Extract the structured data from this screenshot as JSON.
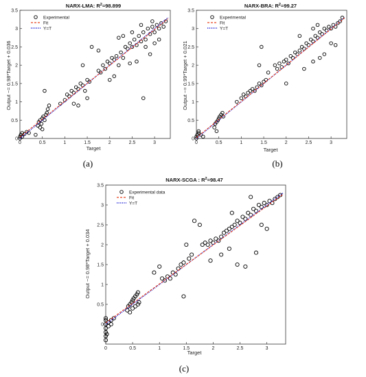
{
  "chart_data": [
    {
      "type": "scatter",
      "panel_label": "(a)",
      "title": "NARX-LMA: R",
      "title_sup": "2",
      "title_rest": "=98.899",
      "xlabel": "Target",
      "ylabel": "Output ~= 0.98*Target + 0.036",
      "xlim": [
        0,
        3.35
      ],
      "ylim": [
        0,
        3.5
      ],
      "xticks": [
        "0",
        "0.5",
        "1",
        "1.5",
        "2",
        "2.5",
        "3"
      ],
      "xtick_values": [
        0,
        0.5,
        1,
        1.5,
        2,
        2.5,
        3
      ],
      "yticks": [
        "0",
        "0.5",
        "1",
        "1.5",
        "2",
        "2.5",
        "3",
        "3.5"
      ],
      "ytick_values": [
        0,
        0.5,
        1,
        1.5,
        2,
        2.5,
        3,
        3.5
      ],
      "legend_position": "top-left",
      "series": [
        {
          "name": "Experimental",
          "style": "black circles"
        },
        {
          "name": "Fit",
          "style": "red dashed",
          "slope": 0.98,
          "intercept": 0.036,
          "color": "#e8401c"
        },
        {
          "name": "Y=T",
          "style": "blue dotted",
          "slope": 1,
          "intercept": 0,
          "color": "#1f1fd6"
        }
      ],
      "points": [
        [
          0,
          0
        ],
        [
          0,
          0.05
        ],
        [
          0.02,
          0.1
        ],
        [
          0.05,
          0.15
        ],
        [
          0.1,
          0.12
        ],
        [
          0.15,
          0.18
        ],
        [
          0.2,
          0.15
        ],
        [
          0.05,
          0.05
        ],
        [
          0.4,
          0.35
        ],
        [
          0.42,
          0.45
        ],
        [
          0.45,
          0.5
        ],
        [
          0.48,
          0.4
        ],
        [
          0.5,
          0.55
        ],
        [
          0.52,
          0.6
        ],
        [
          0.55,
          0.5
        ],
        [
          0.58,
          0.65
        ],
        [
          0.6,
          0.7
        ],
        [
          0.62,
          0.8
        ],
        [
          0.65,
          0.9
        ],
        [
          0.55,
          1.3
        ],
        [
          0.45,
          0.3
        ],
        [
          0.5,
          0.25
        ],
        [
          0.35,
          0.1
        ],
        [
          0.9,
          0.95
        ],
        [
          1.0,
          1.05
        ],
        [
          1.05,
          1.2
        ],
        [
          1.1,
          1.15
        ],
        [
          1.15,
          1.3
        ],
        [
          1.2,
          1.25
        ],
        [
          1.25,
          1.4
        ],
        [
          1.3,
          1.35
        ],
        [
          1.35,
          1.5
        ],
        [
          1.4,
          1.45
        ],
        [
          1.45,
          1.3
        ],
        [
          1.5,
          1.1
        ],
        [
          1.5,
          1.6
        ],
        [
          1.55,
          1.55
        ],
        [
          1.2,
          0.95
        ],
        [
          1.3,
          0.9
        ],
        [
          1.4,
          2.0
        ],
        [
          1.6,
          2.5
        ],
        [
          1.75,
          2.4
        ],
        [
          1.75,
          1.85
        ],
        [
          1.8,
          1.8
        ],
        [
          1.85,
          2.0
        ],
        [
          1.9,
          1.9
        ],
        [
          1.95,
          2.1
        ],
        [
          2.0,
          2.05
        ],
        [
          2.05,
          2.2
        ],
        [
          2.1,
          2.15
        ],
        [
          2.15,
          2.25
        ],
        [
          2.2,
          2.0
        ],
        [
          2.25,
          2.35
        ],
        [
          2.3,
          2.2
        ],
        [
          2.35,
          2.5
        ],
        [
          2.4,
          2.45
        ],
        [
          2.45,
          2.6
        ],
        [
          2.5,
          2.5
        ],
        [
          2.55,
          2.7
        ],
        [
          2.6,
          2.55
        ],
        [
          2.65,
          2.8
        ],
        [
          2.7,
          2.65
        ],
        [
          2.75,
          2.9
        ],
        [
          2.8,
          2.7
        ],
        [
          2.85,
          3.0
        ],
        [
          2.9,
          2.85
        ],
        [
          2.95,
          3.05
        ],
        [
          3.0,
          2.9
        ],
        [
          3.05,
          3.1
        ],
        [
          3.1,
          3.0
        ],
        [
          3.15,
          3.15
        ],
        [
          3.2,
          3.05
        ],
        [
          3.25,
          3.2
        ],
        [
          2.0,
          1.6
        ],
        [
          2.1,
          1.7
        ],
        [
          2.45,
          2.05
        ],
        [
          2.6,
          2.1
        ],
        [
          2.75,
          1.1
        ],
        [
          2.9,
          2.3
        ],
        [
          3.0,
          2.6
        ],
        [
          2.8,
          2.5
        ],
        [
          2.5,
          2.9
        ],
        [
          2.3,
          2.8
        ],
        [
          2.2,
          2.75
        ],
        [
          2.7,
          3.1
        ],
        [
          2.95,
          3.2
        ],
        [
          3.1,
          2.7
        ]
      ]
    },
    {
      "type": "scatter",
      "panel_label": "(b)",
      "title": "NARX-BRA: R",
      "title_sup": "2",
      "title_rest": "=99.27",
      "xlabel": "Target",
      "ylabel": "Output ~= 0.99*Target + 0.021",
      "xlim": [
        0,
        3.35
      ],
      "ylim": [
        0,
        3.5
      ],
      "xticks": [
        "0",
        "0.5",
        "1",
        "1.5",
        "2",
        "2.5",
        "3"
      ],
      "xtick_values": [
        0,
        0.5,
        1,
        1.5,
        2,
        2.5,
        3
      ],
      "yticks": [
        "0",
        "0.5",
        "1",
        "1.5",
        "2",
        "2.5",
        "3",
        "3.5"
      ],
      "ytick_values": [
        0,
        0.5,
        1,
        1.5,
        2,
        2.5,
        3,
        3.5
      ],
      "legend_position": "top-left",
      "series": [
        {
          "name": "Experimental",
          "style": "black circles"
        },
        {
          "name": "Fit",
          "style": "red dashed",
          "slope": 0.99,
          "intercept": 0.021,
          "color": "#e8401c"
        },
        {
          "name": "Y=T",
          "style": "blue dotted",
          "slope": 1,
          "intercept": 0,
          "color": "#1f1fd6"
        }
      ],
      "points": [
        [
          0,
          0
        ],
        [
          0,
          0.05
        ],
        [
          0.02,
          0.1
        ],
        [
          0.05,
          0.15
        ],
        [
          0.1,
          0.1
        ],
        [
          0.15,
          0.05
        ],
        [
          0.05,
          0.2
        ],
        [
          0.4,
          0.3
        ],
        [
          0.42,
          0.4
        ],
        [
          0.45,
          0.45
        ],
        [
          0.48,
          0.5
        ],
        [
          0.5,
          0.55
        ],
        [
          0.52,
          0.6
        ],
        [
          0.55,
          0.65
        ],
        [
          0.58,
          0.7
        ],
        [
          0.6,
          0.6
        ],
        [
          0.45,
          0.2
        ],
        [
          0.9,
          1.0
        ],
        [
          1.0,
          1.1
        ],
        [
          1.05,
          1.2
        ],
        [
          1.1,
          1.15
        ],
        [
          1.15,
          1.25
        ],
        [
          1.2,
          1.3
        ],
        [
          1.25,
          1.35
        ],
        [
          1.3,
          1.3
        ],
        [
          1.35,
          1.4
        ],
        [
          1.4,
          1.5
        ],
        [
          1.45,
          1.45
        ],
        [
          1.5,
          1.55
        ],
        [
          1.55,
          1.6
        ],
        [
          1.4,
          2.0
        ],
        [
          1.45,
          2.5
        ],
        [
          1.6,
          1.8
        ],
        [
          1.75,
          2.0
        ],
        [
          1.8,
          1.9
        ],
        [
          1.85,
          2.05
        ],
        [
          1.9,
          1.95
        ],
        [
          1.95,
          2.1
        ],
        [
          2.0,
          2.15
        ],
        [
          2.05,
          2.05
        ],
        [
          2.1,
          2.25
        ],
        [
          2.15,
          2.2
        ],
        [
          2.2,
          2.35
        ],
        [
          2.25,
          2.3
        ],
        [
          2.3,
          2.4
        ],
        [
          2.35,
          2.5
        ],
        [
          2.4,
          2.45
        ],
        [
          2.45,
          2.6
        ],
        [
          2.5,
          2.55
        ],
        [
          2.55,
          2.7
        ],
        [
          2.6,
          2.65
        ],
        [
          2.65,
          2.8
        ],
        [
          2.7,
          2.75
        ],
        [
          2.75,
          2.9
        ],
        [
          2.8,
          2.85
        ],
        [
          2.85,
          3.0
        ],
        [
          2.9,
          2.95
        ],
        [
          2.95,
          3.05
        ],
        [
          3.0,
          3.0
        ],
        [
          3.05,
          3.1
        ],
        [
          3.1,
          3.05
        ],
        [
          3.15,
          3.15
        ],
        [
          3.2,
          3.2
        ],
        [
          3.25,
          3.3
        ],
        [
          2.0,
          1.5
        ],
        [
          2.6,
          2.1
        ],
        [
          2.75,
          2.2
        ],
        [
          2.85,
          2.3
        ],
        [
          3.0,
          2.6
        ],
        [
          2.7,
          3.1
        ],
        [
          2.6,
          3.0
        ],
        [
          2.3,
          2.8
        ],
        [
          2.4,
          1.9
        ],
        [
          3.1,
          2.55
        ]
      ]
    },
    {
      "type": "scatter",
      "panel_label": "(c)",
      "title": "NARX-SCGA : R",
      "title_sup": "2",
      "title_rest": "=98.47",
      "xlabel": "Target",
      "ylabel": "Output ~= 0.98*Target + 0.034",
      "xlim": [
        0,
        3.35
      ],
      "ylim": [
        -0.5,
        3.5
      ],
      "xticks": [
        "0",
        "0.5",
        "1",
        "1.5",
        "2",
        "2.5",
        "3"
      ],
      "xtick_values": [
        0,
        0.5,
        1,
        1.5,
        2,
        2.5,
        3
      ],
      "yticks": [
        "0",
        "0.5",
        "1",
        "1.5",
        "2",
        "2.5",
        "3",
        "3.5"
      ],
      "ytick_values": [
        0,
        0.5,
        1,
        1.5,
        2,
        2.5,
        3,
        3.5
      ],
      "legend_position": "top-left",
      "series": [
        {
          "name": "Experimental data",
          "style": "black circles"
        },
        {
          "name": "Fit",
          "style": "red dashed",
          "slope": 0.98,
          "intercept": 0.034,
          "color": "#e8401c"
        },
        {
          "name": "Y=T",
          "style": "blue dotted",
          "slope": 1,
          "intercept": 0,
          "color": "#1f1fd6"
        }
      ],
      "points": [
        [
          0,
          0
        ],
        [
          0,
          -0.1
        ],
        [
          0,
          -0.2
        ],
        [
          0,
          -0.3
        ],
        [
          0,
          -0.4
        ],
        [
          0,
          0.1
        ],
        [
          0,
          0.15
        ],
        [
          0.05,
          0.05
        ],
        [
          0.05,
          -0.05
        ],
        [
          0.1,
          0.1
        ],
        [
          0.1,
          0.0
        ],
        [
          0.15,
          0.15
        ],
        [
          0.02,
          -0.25
        ],
        [
          0.4,
          0.35
        ],
        [
          0.42,
          0.45
        ],
        [
          0.45,
          0.5
        ],
        [
          0.48,
          0.55
        ],
        [
          0.5,
          0.6
        ],
        [
          0.52,
          0.65
        ],
        [
          0.55,
          0.7
        ],
        [
          0.58,
          0.75
        ],
        [
          0.6,
          0.8
        ],
        [
          0.45,
          0.3
        ],
        [
          0.5,
          0.4
        ],
        [
          0.55,
          0.45
        ],
        [
          0.6,
          0.5
        ],
        [
          0.62,
          0.55
        ],
        [
          0.9,
          1.3
        ],
        [
          1.0,
          1.45
        ],
        [
          1.05,
          1.15
        ],
        [
          1.1,
          1.1
        ],
        [
          1.15,
          1.2
        ],
        [
          1.2,
          1.15
        ],
        [
          1.25,
          1.3
        ],
        [
          1.3,
          1.25
        ],
        [
          1.35,
          1.4
        ],
        [
          1.4,
          1.5
        ],
        [
          1.45,
          0.7
        ],
        [
          1.45,
          1.55
        ],
        [
          1.5,
          2.0
        ],
        [
          1.55,
          1.65
        ],
        [
          1.6,
          1.75
        ],
        [
          1.65,
          2.6
        ],
        [
          1.75,
          2.5
        ],
        [
          1.8,
          2.0
        ],
        [
          1.85,
          2.05
        ],
        [
          1.9,
          2.0
        ],
        [
          1.95,
          2.1
        ],
        [
          2.0,
          2.05
        ],
        [
          2.05,
          2.15
        ],
        [
          2.1,
          2.1
        ],
        [
          2.15,
          2.2
        ],
        [
          2.2,
          2.3
        ],
        [
          2.25,
          2.35
        ],
        [
          2.3,
          2.4
        ],
        [
          2.35,
          2.45
        ],
        [
          2.4,
          2.5
        ],
        [
          2.45,
          2.6
        ],
        [
          2.5,
          2.55
        ],
        [
          2.55,
          2.7
        ],
        [
          2.6,
          2.65
        ],
        [
          2.65,
          2.8
        ],
        [
          2.7,
          2.75
        ],
        [
          2.75,
          2.9
        ],
        [
          2.8,
          2.85
        ],
        [
          2.85,
          3.0
        ],
        [
          2.9,
          2.95
        ],
        [
          2.95,
          3.05
        ],
        [
          3.0,
          3.0
        ],
        [
          3.05,
          3.1
        ],
        [
          3.1,
          3.05
        ],
        [
          3.15,
          3.15
        ],
        [
          3.2,
          3.2
        ],
        [
          3.25,
          3.25
        ],
        [
          1.95,
          1.6
        ],
        [
          2.15,
          1.75
        ],
        [
          2.35,
          2.8
        ],
        [
          2.45,
          1.5
        ],
        [
          2.6,
          1.45
        ],
        [
          2.8,
          1.8
        ],
        [
          2.9,
          2.5
        ],
        [
          3.0,
          2.4
        ],
        [
          2.3,
          1.9
        ],
        [
          2.7,
          3.2
        ]
      ]
    }
  ]
}
